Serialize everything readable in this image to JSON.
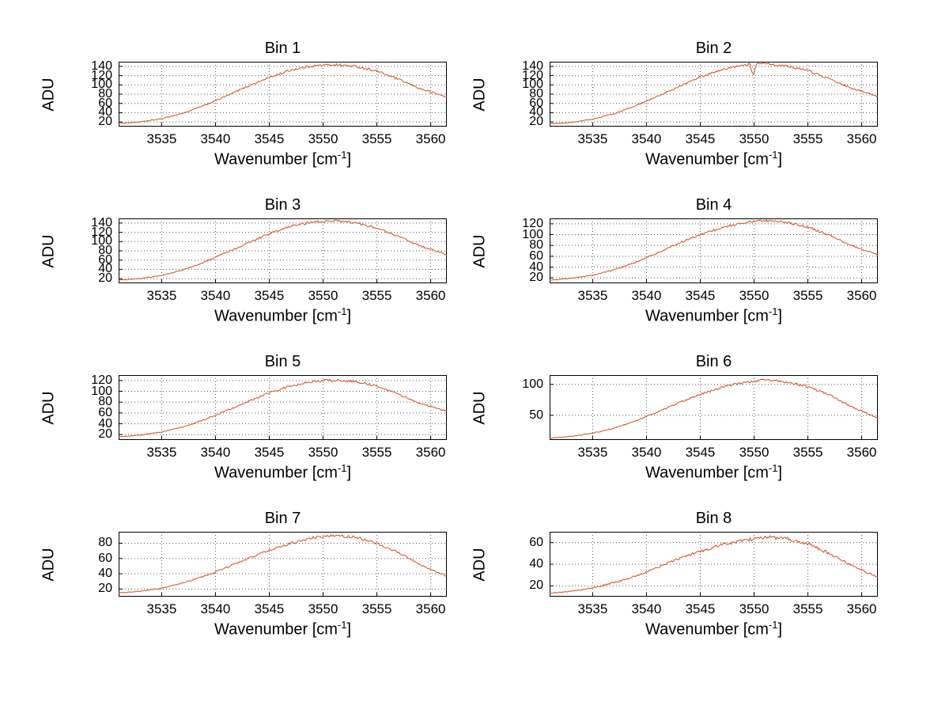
{
  "page": {
    "background": "#ffffff"
  },
  "chart_data": {
    "type": "line",
    "layout": {
      "rows": 4,
      "cols": 2,
      "grid": "dotted",
      "legend": "none",
      "box": true
    },
    "line_color": "#cf4f1a",
    "grid_color": "#555555",
    "axis_color": "#000000",
    "ylabel": "ADU",
    "xlabel_main": "Wavenumber [cm",
    "xlabel_sup": "-1",
    "xlabel_close": "]",
    "xticks": [
      3535,
      3540,
      3545,
      3550,
      3555,
      3560
    ],
    "xlim": [
      3531,
      3561.5
    ],
    "subplots": [
      {
        "title": "Bin 1",
        "yticks": [
          20,
          40,
          60,
          80,
          100,
          120,
          140
        ],
        "ylim": [
          10,
          150
        ],
        "noise": 2.6,
        "x": [
          3531,
          3533,
          3535,
          3537,
          3539,
          3541,
          3543,
          3545,
          3547,
          3549,
          3551,
          3553,
          3555,
          3557,
          3559,
          3561.5
        ],
        "y": [
          17,
          20,
          27,
          39,
          56,
          76,
          97,
          116,
          132,
          141,
          144,
          140,
          130,
          112,
          92,
          74
        ]
      },
      {
        "title": "Bin 2",
        "yticks": [
          20,
          40,
          60,
          80,
          100,
          120,
          140
        ],
        "ylim": [
          10,
          150
        ],
        "noise": 2.6,
        "x": [
          3531,
          3533,
          3535,
          3537,
          3539,
          3541,
          3543,
          3545,
          3547,
          3549,
          3549.6,
          3549.9,
          3550.2,
          3551,
          3553,
          3555,
          3557,
          3559,
          3561.5
        ],
        "y": [
          16,
          19,
          26,
          38,
          55,
          75,
          96,
          117,
          133,
          143,
          145,
          120,
          144,
          146,
          141,
          131,
          113,
          93,
          75
        ]
      },
      {
        "title": "Bin 3",
        "yticks": [
          20,
          40,
          60,
          80,
          100,
          120,
          140
        ],
        "ylim": [
          10,
          150
        ],
        "noise": 2.6,
        "x": [
          3531,
          3533,
          3535,
          3537,
          3539,
          3541,
          3543,
          3545,
          3547,
          3549,
          3551,
          3553,
          3555,
          3557,
          3559,
          3561.5
        ],
        "y": [
          17,
          20,
          27,
          39,
          56,
          76,
          97,
          117,
          133,
          142,
          145,
          141,
          129,
          111,
          91,
          72
        ]
      },
      {
        "title": "Bin 4",
        "yticks": [
          20,
          40,
          60,
          80,
          100,
          120
        ],
        "ylim": [
          10,
          130
        ],
        "noise": 2.3,
        "x": [
          3531,
          3533,
          3535,
          3537,
          3539,
          3541,
          3543,
          3545,
          3547,
          3549,
          3551,
          3553,
          3555,
          3557,
          3559,
          3561.5
        ],
        "y": [
          16,
          19,
          25,
          35,
          49,
          66,
          84,
          100,
          113,
          122,
          126,
          123,
          114,
          99,
          80,
          63
        ]
      },
      {
        "title": "Bin 5",
        "yticks": [
          20,
          40,
          60,
          80,
          100,
          120
        ],
        "ylim": [
          10,
          130
        ],
        "noise": 2.2,
        "x": [
          3531,
          3533,
          3535,
          3537,
          3539,
          3541,
          3543,
          3545,
          3547,
          3549,
          3551,
          3553,
          3555,
          3557,
          3559,
          3561.5
        ],
        "y": [
          16,
          19,
          25,
          34,
          48,
          64,
          81,
          97,
          110,
          118,
          121,
          118,
          110,
          95,
          78,
          63
        ]
      },
      {
        "title": "Bin 6",
        "yticks": [
          50,
          100
        ],
        "ylim": [
          10,
          115
        ],
        "noise": 2.0,
        "x": [
          3531,
          3533,
          3535,
          3537,
          3539,
          3541,
          3543,
          3545,
          3547,
          3549,
          3551,
          3553,
          3555,
          3557,
          3559,
          3561.5
        ],
        "y": [
          13,
          16,
          21,
          29,
          41,
          55,
          70,
          84,
          95,
          103,
          107,
          104,
          96,
          83,
          64,
          46
        ]
      },
      {
        "title": "Bin 7",
        "yticks": [
          20,
          40,
          60,
          80
        ],
        "ylim": [
          10,
          95
        ],
        "noise": 1.8,
        "x": [
          3531,
          3533,
          3535,
          3537,
          3539,
          3541,
          3543,
          3545,
          3547,
          3549,
          3551,
          3553,
          3555,
          3557,
          3559,
          3561.5
        ],
        "y": [
          15,
          17,
          21,
          28,
          37,
          48,
          60,
          71,
          80,
          87,
          90,
          88,
          80,
          68,
          52,
          37
        ]
      },
      {
        "title": "Bin 8",
        "yticks": [
          20,
          40,
          60
        ],
        "ylim": [
          10,
          70
        ],
        "noise": 1.6,
        "x": [
          3531,
          3533,
          3535,
          3537,
          3539,
          3541,
          3543,
          3545,
          3547,
          3549,
          3551,
          3553,
          3555,
          3557,
          3559,
          3561.5
        ],
        "y": [
          13,
          15,
          18,
          23,
          29,
          37,
          45,
          52,
          58,
          62,
          65,
          64,
          59,
          50,
          39,
          28
        ]
      }
    ]
  }
}
